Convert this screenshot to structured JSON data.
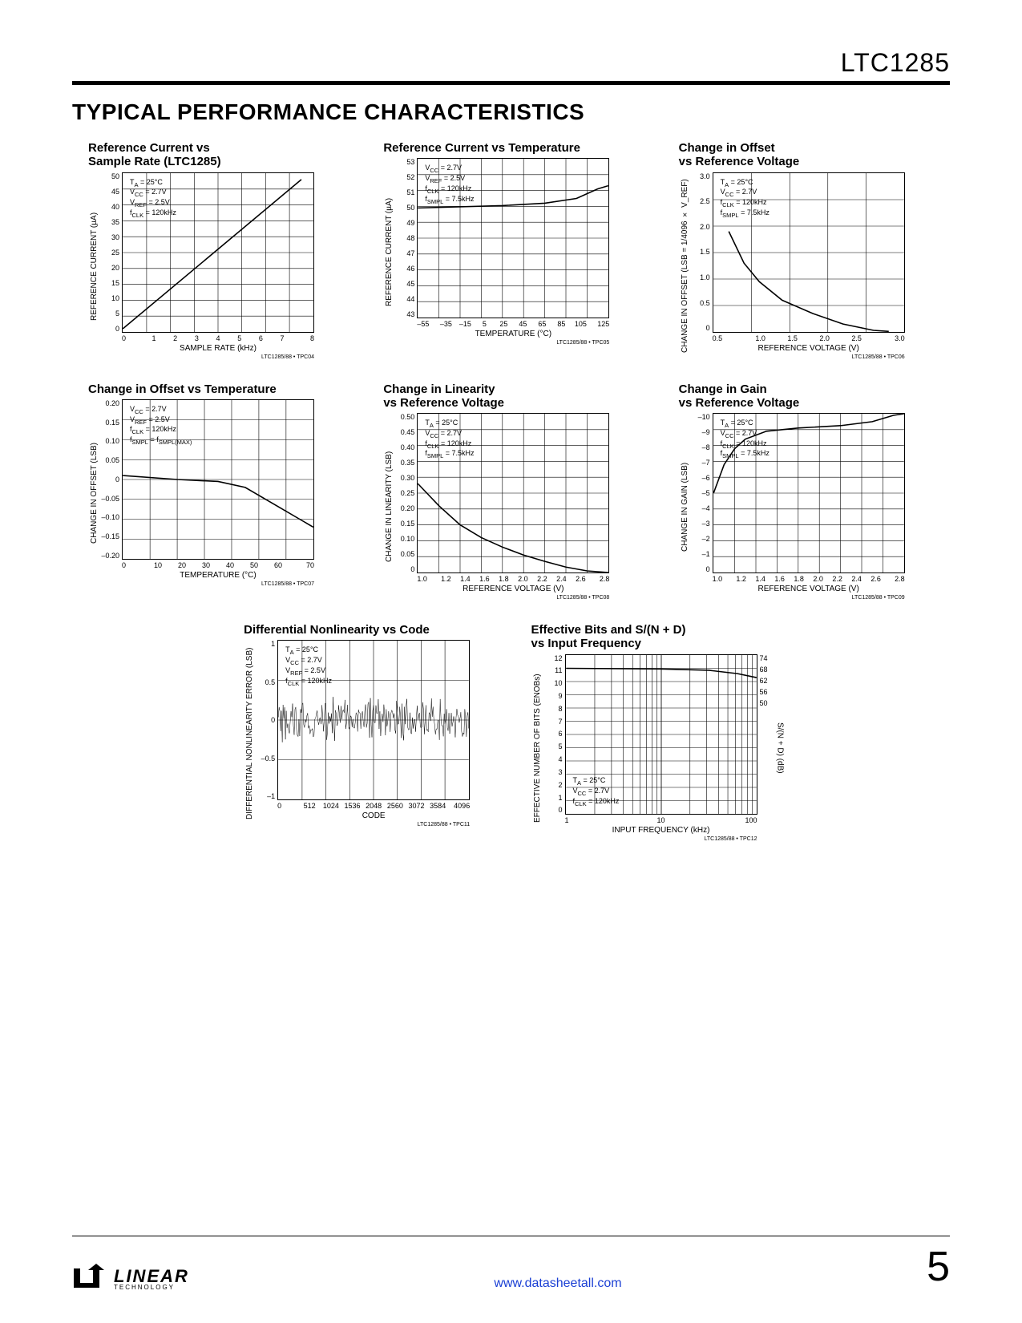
{
  "part_number": "LTC1285",
  "section_title": "TYPICAL PERFORMANCE CHARACTERISTICS",
  "footnote_tag": "LTC1285/88 • TPC",
  "charts": {
    "c1": {
      "title": "Reference Current vs\nSample Rate (LTC1285)",
      "ylabel": "REFERENCE CURRENT (µA)",
      "xlabel": "SAMPLE RATE (kHz)",
      "yticks": [
        "50",
        "45",
        "40",
        "35",
        "30",
        "25",
        "20",
        "15",
        "10",
        "5",
        "0"
      ],
      "xticks": [
        "0",
        "1",
        "2",
        "3",
        "4",
        "5",
        "6",
        "7",
        "8"
      ],
      "conditions": [
        "T_A = 25°C",
        "V_CC = 2.7V",
        "V_REF = 2.5V",
        "f_CLK = 120kHz"
      ],
      "footnote": "04",
      "ylim": [
        0,
        50
      ],
      "xlim": [
        0,
        8
      ],
      "curve": [
        [
          0,
          1
        ],
        [
          7.5,
          48
        ]
      ]
    },
    "c2": {
      "title": "Reference Current vs Temperature",
      "ylabel": "REFERENCE CURRENT (µA)",
      "xlabel": "TEMPERATURE (°C)",
      "yticks": [
        "53",
        "52",
        "51",
        "50",
        "49",
        "48",
        "47",
        "46",
        "45",
        "44",
        "43"
      ],
      "xticks": [
        "–55",
        "–35",
        "–15",
        "5",
        "25",
        "45",
        "65",
        "85",
        "105",
        "125"
      ],
      "conditions": [
        "V_CC = 2.7V",
        "V_REF = 2.5V",
        "f_CLK = 120kHz",
        "f_SMPL = 7.5kHz"
      ],
      "footnote": "05",
      "ylim": [
        43,
        53
      ],
      "xlim": [
        -55,
        125
      ],
      "curve": [
        [
          -55,
          49.9
        ],
        [
          25,
          50.05
        ],
        [
          65,
          50.2
        ],
        [
          95,
          50.5
        ],
        [
          115,
          51.1
        ],
        [
          125,
          51.3
        ]
      ]
    },
    "c3": {
      "title": "Change in Offset\nvs Reference Voltage",
      "ylabel": "CHANGE IN OFFSET (LSB = 1/4096 × V_REF)",
      "xlabel": "REFERENCE VOLTAGE (V)",
      "yticks": [
        "3.0",
        "2.5",
        "2.0",
        "1.5",
        "1.0",
        "0.5",
        "0"
      ],
      "xticks": [
        "0.5",
        "1.0",
        "1.5",
        "2.0",
        "2.5",
        "3.0"
      ],
      "conditions": [
        "T_A = 25°C",
        "V_CC = 2.7V",
        "f_CLK = 120kHz",
        "f_SMPL = 7.5kHz"
      ],
      "footnote": "06",
      "ylim": [
        0,
        3.0
      ],
      "xlim": [
        0.5,
        3.0
      ],
      "curve": [
        [
          0.7,
          1.9
        ],
        [
          0.9,
          1.3
        ],
        [
          1.1,
          0.95
        ],
        [
          1.4,
          0.6
        ],
        [
          1.8,
          0.35
        ],
        [
          2.2,
          0.15
        ],
        [
          2.6,
          0.03
        ],
        [
          2.8,
          0.01
        ]
      ]
    },
    "c4": {
      "title": "Change in Offset vs Temperature",
      "ylabel": "CHANGE IN OFFSET (LSB)",
      "xlabel": "TEMPERATURE (°C)",
      "yticks": [
        "0.20",
        "0.15",
        "0.10",
        "0.05",
        "0",
        "–0.05",
        "–0.10",
        "–0.15",
        "–0.20"
      ],
      "xticks": [
        "0",
        "10",
        "20",
        "30",
        "40",
        "50",
        "60",
        "70"
      ],
      "conditions": [
        "V_CC = 2.7V",
        "V_REF = 2.5V",
        "f_CLK = 120kHz",
        "f_SMPL = f_SMPL(MAX)"
      ],
      "footnote": "07",
      "ylim": [
        -0.2,
        0.2
      ],
      "xlim": [
        0,
        70
      ],
      "curve": [
        [
          0,
          0.01
        ],
        [
          20,
          0.0
        ],
        [
          35,
          -0.005
        ],
        [
          45,
          -0.02
        ],
        [
          55,
          -0.06
        ],
        [
          65,
          -0.1
        ],
        [
          70,
          -0.12
        ]
      ]
    },
    "c5": {
      "title": "Change in Linearity\nvs Reference Voltage",
      "ylabel": "CHANGE IN LINEARITY (LSB)",
      "xlabel": "REFERENCE VOLTAGE (V)",
      "yticks": [
        "0.50",
        "0.45",
        "0.40",
        "0.35",
        "0.30",
        "0.25",
        "0.20",
        "0.15",
        "0.10",
        "0.05",
        "0"
      ],
      "xticks": [
        "1.0",
        "1.2",
        "1.4",
        "1.6",
        "1.8",
        "2.0",
        "2.2",
        "2.4",
        "2.6",
        "2.8"
      ],
      "conditions": [
        "T_A = 25°C",
        "V_CC = 2.7V",
        "f_CLK = 120kHz",
        "f_SMPL = 7.5kHz"
      ],
      "footnote": "08",
      "ylim": [
        0,
        0.5
      ],
      "xlim": [
        1.0,
        2.8
      ],
      "curve": [
        [
          1.0,
          0.28
        ],
        [
          1.2,
          0.21
        ],
        [
          1.4,
          0.15
        ],
        [
          1.6,
          0.11
        ],
        [
          1.8,
          0.08
        ],
        [
          2.0,
          0.055
        ],
        [
          2.2,
          0.035
        ],
        [
          2.4,
          0.017
        ],
        [
          2.6,
          0.005
        ],
        [
          2.8,
          0.0
        ]
      ]
    },
    "c6": {
      "title": "Change in Gain\nvs Reference Voltage",
      "ylabel": "CHANGE IN GAIN (LSB)",
      "xlabel": "REFERENCE VOLTAGE (V)",
      "yticks": [
        "–10",
        "–9",
        "–8",
        "–7",
        "–6",
        "–5",
        "–4",
        "–3",
        "–2",
        "–1",
        "0"
      ],
      "xticks": [
        "1.0",
        "1.2",
        "1.4",
        "1.6",
        "1.8",
        "2.0",
        "2.2",
        "2.4",
        "2.6",
        "2.8"
      ],
      "conditions": [
        "T_A = 25°C",
        "V_CC = 2.7V",
        "f_CLK = 120kHz",
        "f_SMPL = 7.5kHz"
      ],
      "footnote": "09",
      "ylim": [
        -10,
        0
      ],
      "xlim": [
        1.0,
        2.8
      ],
      "curve": [
        [
          1.0,
          -5.0
        ],
        [
          1.1,
          -3.2
        ],
        [
          1.2,
          -2.2
        ],
        [
          1.3,
          -1.6
        ],
        [
          1.5,
          -1.1
        ],
        [
          1.8,
          -0.9
        ],
        [
          2.2,
          -0.75
        ],
        [
          2.5,
          -0.5
        ],
        [
          2.7,
          -0.1
        ],
        [
          2.8,
          0
        ]
      ]
    },
    "c7": {
      "title": "Differential Nonlinearity vs Code",
      "ylabel": "DIFFERENTIAL NONLINEARITY ERROR (LSB)",
      "xlabel": "CODE",
      "yticks": [
        "1",
        "0.5",
        "0",
        "–0.5",
        "–1"
      ],
      "xticks": [
        "0",
        "512",
        "1024",
        "1536",
        "2048",
        "2560",
        "3072",
        "3584",
        "4096"
      ],
      "conditions": [
        "T_A = 25°C",
        "V_CC = 2.7V",
        "V_REF = 2.5V",
        "f_CLK = 120kHz"
      ],
      "footnote": "11",
      "ylim": [
        -1,
        1
      ],
      "xlim": [
        0,
        4096
      ]
    },
    "c8": {
      "title": "Effective Bits and S/(N + D)\nvs Input Frequency",
      "ylabel": "EFFECTIVE NUMBER OF BITS (ENOBs)",
      "yrlabel": "S/(N + D) (dB)",
      "xlabel": "INPUT FREQUENCY (kHz)",
      "yticks": [
        "12",
        "11",
        "10",
        "9",
        "8",
        "7",
        "6",
        "5",
        "4",
        "3",
        "2",
        "1",
        "0"
      ],
      "yrticks": [
        "74",
        "68",
        "62",
        "56",
        "50"
      ],
      "xticks": [
        "1",
        "10",
        "100"
      ],
      "conditions": [
        "T_A = 25°C",
        "V_CC = 2.7V",
        "f_CLK = 120kHz"
      ],
      "footnote": "12",
      "ylim": [
        0,
        12
      ],
      "xlim": [
        0,
        2
      ],
      "curve": [
        [
          0,
          11.0
        ],
        [
          1.0,
          10.95
        ],
        [
          1.5,
          10.85
        ],
        [
          1.8,
          10.6
        ],
        [
          2.0,
          10.3
        ]
      ]
    }
  },
  "footer": {
    "url": "www.datasheetall.com",
    "page": "5",
    "brand": "LINEAR",
    "brand_sub": "TECHNOLOGY"
  }
}
